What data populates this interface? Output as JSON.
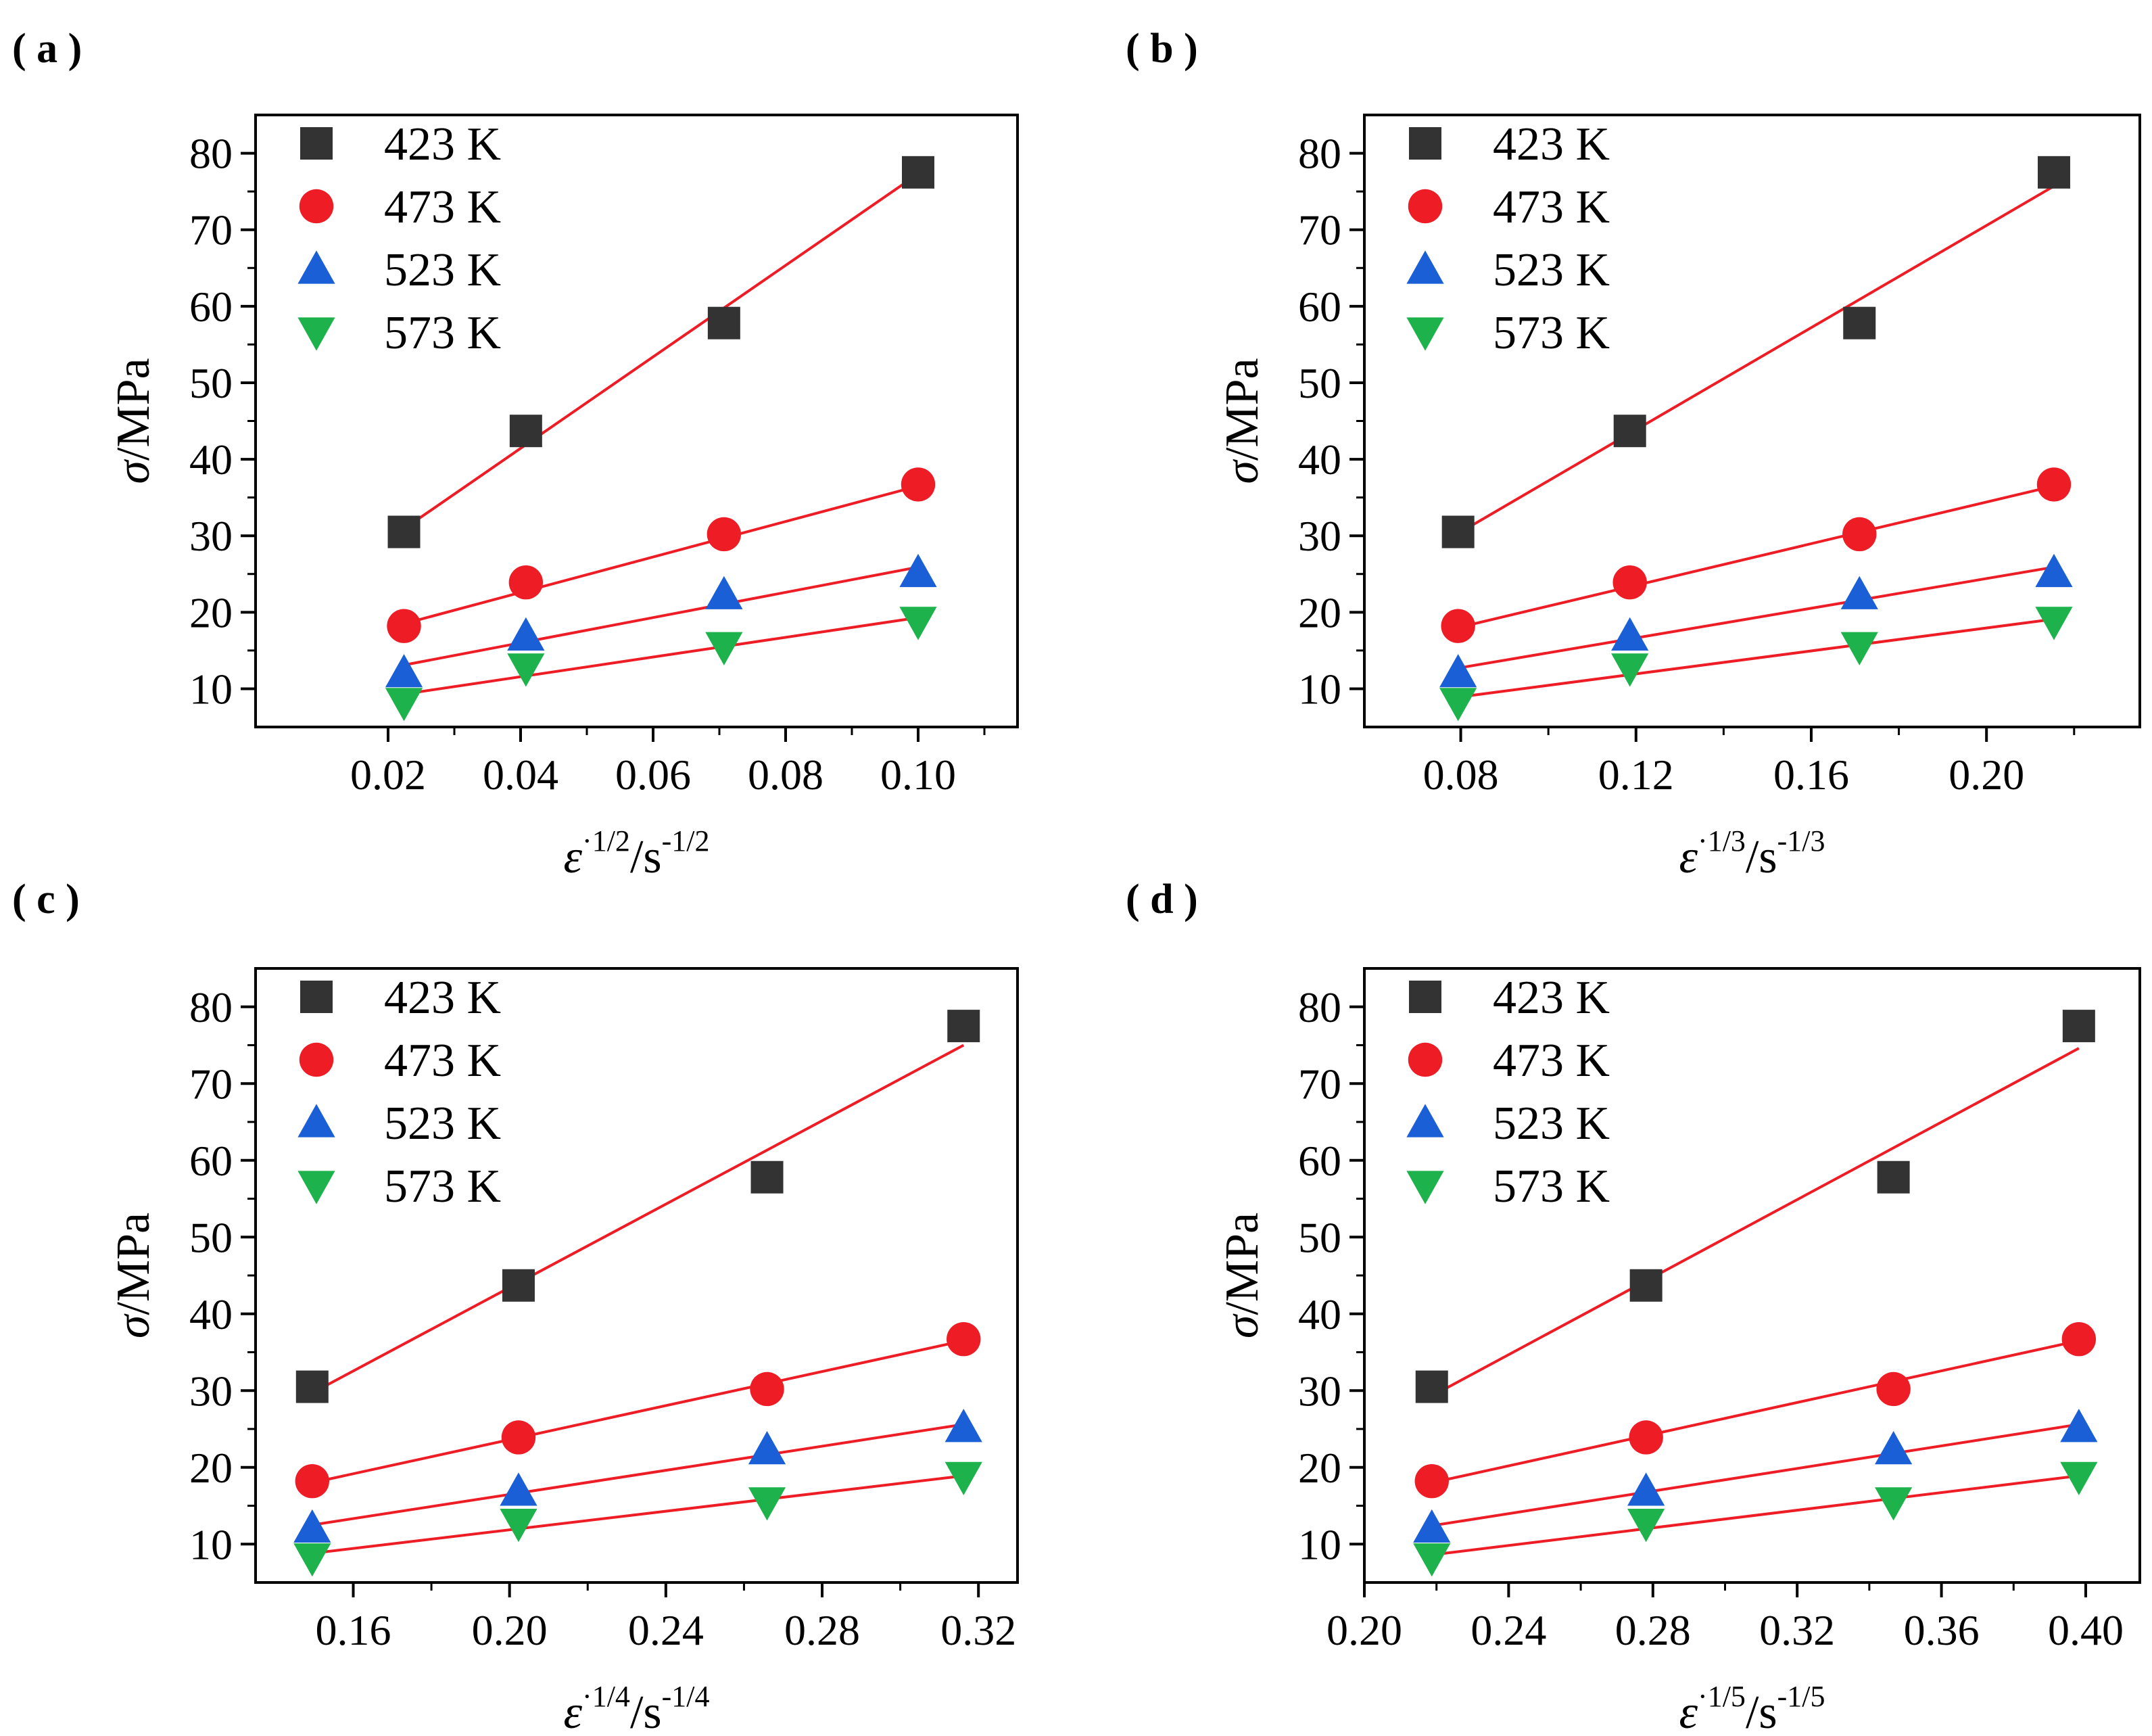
{
  "series_styles": [
    {
      "temp": "423 K",
      "marker": "square",
      "color": "#333333"
    },
    {
      "temp": "473 K",
      "marker": "circle",
      "color": "#ee1c25"
    },
    {
      "temp": "523 K",
      "marker": "triangle-up",
      "color": "#1a5fd6"
    },
    {
      "temp": "573 K",
      "marker": "triangle-down",
      "color": "#1db24b"
    }
  ],
  "fit_line_color": "#ee1c25",
  "chart_data": [
    {
      "panel": "( a )",
      "type": "scatter",
      "ylabel": {
        "sym": "σ",
        "rest": "/MPa"
      },
      "xlabel": {
        "sym": "ε",
        "sup1": "·1/2",
        "mid": "/s",
        "sup2": "-1/2"
      },
      "xlim": [
        0.0,
        0.115
      ],
      "ylim": [
        5,
        85
      ],
      "xticks": [
        0.02,
        0.04,
        0.06,
        0.08,
        0.1
      ],
      "xtick_labels": [
        "0.02",
        "0.04",
        "0.06",
        "0.08",
        "0.10"
      ],
      "yticks": [
        10,
        20,
        30,
        40,
        50,
        60,
        70,
        80
      ],
      "ytick_labels": [
        "10",
        "20",
        "30",
        "40",
        "50",
        "60",
        "70",
        "80"
      ],
      "x": [
        0.0224,
        0.0408,
        0.0707,
        0.1
      ],
      "series": [
        {
          "name": "423 K",
          "values": [
            30.5,
            43.7,
            57.8,
            77.5
          ],
          "fit": [
            30.9,
            77.3
          ]
        },
        {
          "name": "473 K",
          "values": [
            18.2,
            23.9,
            30.2,
            36.7
          ],
          "fit": [
            18.5,
            36.5
          ]
        },
        {
          "name": "523 K",
          "values": [
            12.1,
            16.9,
            22.3,
            25.2
          ],
          "fit": [
            13.1,
            25.9
          ]
        },
        {
          "name": "573 K",
          "values": [
            8.2,
            12.7,
            15.5,
            18.8
          ],
          "fit": [
            9.3,
            19.3
          ]
        }
      ]
    },
    {
      "panel": "( b )",
      "type": "scatter",
      "ylabel": {
        "sym": "σ",
        "rest": "/MPa"
      },
      "xlabel": {
        "sym": "ε",
        "sup1": "·1/3",
        "mid": "/s",
        "sup2": "-1/3"
      },
      "xlim": [
        0.058,
        0.235
      ],
      "ylim": [
        5,
        85
      ],
      "xticks": [
        0.08,
        0.12,
        0.16,
        0.2
      ],
      "xtick_labels": [
        "0.08",
        "0.12",
        "0.16",
        "0.20"
      ],
      "yticks": [
        10,
        20,
        30,
        40,
        50,
        60,
        70,
        80
      ],
      "ytick_labels": [
        "10",
        "20",
        "30",
        "40",
        "50",
        "60",
        "70",
        "80"
      ],
      "x": [
        0.0794,
        0.1186,
        0.171,
        0.2154
      ],
      "series": [
        {
          "name": "423 K",
          "values": [
            30.5,
            43.7,
            57.8,
            77.5
          ],
          "fit": [
            30.3,
            75.7
          ]
        },
        {
          "name": "473 K",
          "values": [
            18.2,
            23.9,
            30.2,
            36.7
          ],
          "fit": [
            18.0,
            36.5
          ]
        },
        {
          "name": "523 K",
          "values": [
            12.1,
            16.9,
            22.3,
            25.2
          ],
          "fit": [
            12.7,
            25.9
          ]
        },
        {
          "name": "573 K",
          "values": [
            8.2,
            12.7,
            15.5,
            18.8
          ],
          "fit": [
            8.9,
            19.1
          ]
        }
      ]
    },
    {
      "panel": "( c )",
      "type": "scatter",
      "ylabel": {
        "sym": "σ",
        "rest": "/MPa"
      },
      "xlabel": {
        "sym": "ε",
        "sup1": "·1/4",
        "mid": "/s",
        "sup2": "-1/4"
      },
      "xlim": [
        0.135,
        0.33
      ],
      "ylim": [
        5,
        85
      ],
      "xticks": [
        0.16,
        0.2,
        0.24,
        0.28,
        0.32
      ],
      "xtick_labels": [
        "0.16",
        "0.20",
        "0.24",
        "0.28",
        "0.32"
      ],
      "yticks": [
        10,
        20,
        30,
        40,
        50,
        60,
        70,
        80
      ],
      "ytick_labels": [
        "10",
        "20",
        "30",
        "40",
        "50",
        "60",
        "70",
        "80"
      ],
      "x": [
        0.1495,
        0.2023,
        0.2659,
        0.3162
      ],
      "series": [
        {
          "name": "423 K",
          "values": [
            30.5,
            43.7,
            57.8,
            77.5
          ],
          "fit": [
            29.7,
            75.0
          ]
        },
        {
          "name": "473 K",
          "values": [
            18.2,
            23.9,
            30.2,
            36.7
          ],
          "fit": [
            18.0,
            36.5
          ]
        },
        {
          "name": "523 K",
          "values": [
            12.1,
            16.9,
            22.3,
            25.2
          ],
          "fit": [
            12.5,
            25.6
          ]
        },
        {
          "name": "573 K",
          "values": [
            8.2,
            12.7,
            15.5,
            18.8
          ],
          "fit": [
            8.8,
            18.9
          ]
        }
      ]
    },
    {
      "panel": "( d )",
      "type": "scatter",
      "ylabel": {
        "sym": "σ",
        "rest": "/MPa"
      },
      "xlabel": {
        "sym": "ε",
        "sup1": "·1/5",
        "mid": "/s",
        "sup2": "-1/5"
      },
      "xlim": [
        0.2,
        0.415
      ],
      "ylim": [
        5,
        85
      ],
      "xticks": [
        0.2,
        0.24,
        0.28,
        0.32,
        0.36,
        0.4
      ],
      "xtick_labels": [
        "0.20",
        "0.24",
        "0.28",
        "0.32",
        "0.36",
        "0.40"
      ],
      "yticks": [
        10,
        20,
        30,
        40,
        50,
        60,
        70,
        80
      ],
      "ytick_labels": [
        "10",
        "20",
        "30",
        "40",
        "50",
        "60",
        "70",
        "80"
      ],
      "x": [
        0.2187,
        0.2781,
        0.3467,
        0.3981
      ],
      "series": [
        {
          "name": "423 K",
          "values": [
            30.5,
            43.7,
            57.8,
            77.5
          ],
          "fit": [
            29.3,
            74.6
          ]
        },
        {
          "name": "473 K",
          "values": [
            18.2,
            23.9,
            30.2,
            36.7
          ],
          "fit": [
            18.0,
            36.5
          ]
        },
        {
          "name": "523 K",
          "values": [
            12.1,
            16.9,
            22.3,
            25.2
          ],
          "fit": [
            12.4,
            25.6
          ]
        },
        {
          "name": "573 K",
          "values": [
            8.2,
            12.7,
            15.5,
            18.8
          ],
          "fit": [
            8.6,
            18.9
          ]
        }
      ]
    }
  ]
}
